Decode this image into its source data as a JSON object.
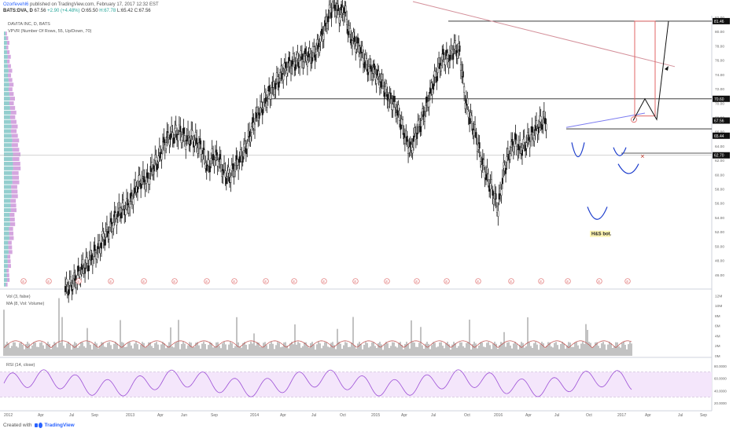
{
  "header": {
    "user": "Ozorfevehl6",
    "published_text": "published on TradingView.com, February 17, 2017 12:32 EST",
    "symbol": "BATS:DVA, D",
    "open": "67.56",
    "change": "+2.90 (+4.48%)",
    "o": "O:65.50",
    "h": "H:67.78",
    "l": "L:65.42",
    "c": "C:67.56"
  },
  "labels": {
    "instrument": "DAVITA INC, D, BATS",
    "vpvr": "VPVR (Number Of Rows, 55, Up/Down, 70)",
    "vol": "Vol (3, false)",
    "ma": "MA (8, Vol: Volume)",
    "rsi": "RSI (14, close)",
    "pattern": "H&S bot."
  },
  "footer": {
    "created_with": "Created with",
    "brand": "TradingView"
  },
  "chart_data": {
    "type": "line",
    "title": "DAVITA INC, D, BATS",
    "price_axis_ticks": [
      "80.00",
      "66.00",
      "64.00",
      "62.00",
      "60.00",
      "78.00",
      "76.00",
      "74.00",
      "72.00",
      "70.00",
      "68.00",
      "66.00",
      "64.00",
      "62.00",
      "60.00",
      "58.00",
      "56.00",
      "54.00",
      "52.00",
      "50.00",
      "48.00",
      "46.00",
      "44.00"
    ],
    "ylim": [
      44,
      82
    ],
    "highlighted_prices": [
      {
        "label": "81.46",
        "value": 81.46
      },
      {
        "label": "70.60",
        "value": 70.6
      },
      {
        "label": "67.56",
        "value": 67.56
      },
      {
        "label": "65.44",
        "value": 65.44
      },
      {
        "label": "62.70",
        "value": 62.7
      }
    ],
    "horizontal_levels": [
      81.46,
      70.6,
      66.4,
      63.0
    ],
    "x_ticks": [
      "2012",
      "Apr",
      "Jul",
      "Sep",
      "2013",
      "Apr",
      "Jun",
      "Sep",
      "2014",
      "Apr",
      "Jul",
      "Oct",
      "2015",
      "Apr",
      "Jul",
      "Oct",
      "2016",
      "Apr",
      "Jul",
      "Oct",
      "2017",
      "Apr",
      "Jul",
      "Sep"
    ],
    "series": [
      {
        "name": "DVA",
        "x": [
          0,
          10,
          20,
          30,
          40,
          50,
          60,
          70,
          80,
          90,
          100,
          110,
          120,
          130,
          140,
          150,
          160,
          170,
          180,
          190,
          200,
          210,
          220,
          230,
          240,
          250,
          260,
          270,
          280,
          290,
          300,
          310,
          320,
          330,
          340,
          350,
          360,
          370,
          380,
          390,
          400,
          410,
          420,
          430,
          440,
          450,
          460,
          470,
          480,
          490,
          500,
          510,
          520,
          530,
          540,
          550,
          560,
          570,
          580,
          590,
          600,
          610,
          620,
          630,
          640,
          650,
          660,
          670,
          680,
          690,
          700,
          710,
          720,
          730,
          740,
          750,
          760,
          770,
          780,
          790,
          800,
          810,
          820,
          830,
          840,
          850,
          860,
          870
        ],
        "values": [
          44.0,
          44.6,
          45.4,
          46.8,
          47.5,
          48.6,
          49.4,
          51.2,
          52.2,
          53.7,
          55.1,
          55.4,
          56.2,
          58.4,
          59.4,
          59.0,
          61.1,
          62.2,
          64.1,
          65.4,
          65.7,
          65.9,
          64.8,
          65.3,
          64.5,
          63.3,
          61.0,
          62.6,
          62.1,
          60.2,
          59.7,
          61.2,
          62.2,
          64.0,
          66.3,
          68.3,
          69.6,
          71.0,
          72.1,
          73.5,
          74.6,
          75.3,
          75.8,
          76.1,
          76.4,
          76.6,
          77.6,
          79.5,
          82.1,
          84.0,
          82.3,
          83.0,
          79.3,
          78.4,
          77.1,
          75.3,
          74.6,
          73.7,
          72.6,
          70.7,
          69.8,
          68.1,
          65.4,
          63.3,
          65.8,
          67.5,
          69.6,
          72.3,
          74.7,
          76.4,
          76.2,
          77.7,
          77.1,
          70.5,
          67.7,
          65.3,
          61.8,
          59.8,
          57.6,
          55.2,
          60.4,
          62.9,
          64.7,
          63.5,
          64.4,
          65.2,
          66.4,
          67.56
        ]
      },
      {
        "name": "Projection",
        "x": [
          805,
          820,
          835,
          850
        ],
        "values": [
          67.56,
          70.6,
          67.7,
          81.46
        ]
      }
    ],
    "annotations": [
      "H&S bot."
    ],
    "volume_axis_ticks": [
      "12M",
      "10M",
      "8M",
      "6M",
      "4M",
      "2M",
      "0M"
    ],
    "rsi_axis_ticks": [
      "80.0000",
      "60.0000",
      "40.0000",
      "20.0000"
    ],
    "rsi_levels": [
      70,
      30
    ],
    "grid": true
  },
  "colors": {
    "candle": "#111111",
    "trendline": "#d4909a",
    "neckline": "#7b7bf0",
    "level": "#222222",
    "rsi": "#9c4fd6",
    "rsi_band": "#f4e6fb",
    "volume": "#999999",
    "volume_ma": "#c0504d",
    "projection_box": "#e06666",
    "pattern_arcs": "#1a3bcc",
    "vpvr_up": "#3aa6a6",
    "vpvr_down": "#b05cc4"
  }
}
